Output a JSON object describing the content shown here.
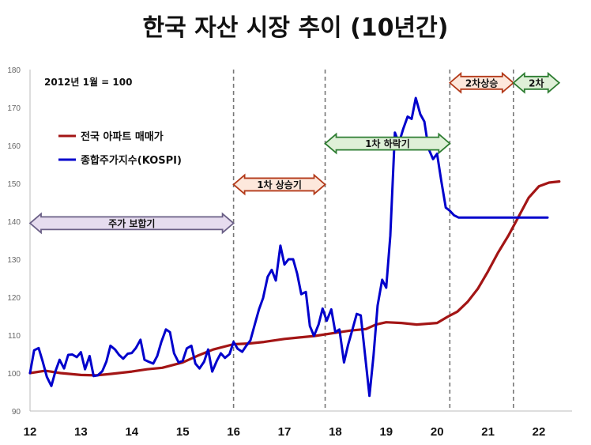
{
  "chart_data": {
    "type": "line",
    "title": "한국 자산 시장 추이 (10년간)",
    "base_note": "2012년 1월 = 100",
    "ylim": [
      90,
      180
    ],
    "yticks": [
      90,
      100,
      110,
      120,
      130,
      140,
      150,
      160,
      170,
      180
    ],
    "xlim": [
      12,
      22.45
    ],
    "xticks": [
      12,
      13,
      14,
      15,
      16,
      17,
      18,
      19,
      20,
      21,
      22
    ],
    "xtick_labels": [
      "12",
      "13",
      "14",
      "15",
      "16",
      "17",
      "18",
      "19",
      "20",
      "21",
      "22"
    ],
    "grid": false,
    "legend_position": "upper-left",
    "series": [
      {
        "name": "전국 아파트 매매가",
        "color": "#a31515",
        "x": [
          12.0,
          12.3,
          12.6,
          13.0,
          13.3,
          13.6,
          14.0,
          14.3,
          14.6,
          15.0,
          15.3,
          15.6,
          16.0,
          16.3,
          16.6,
          17.0,
          17.3,
          17.6,
          18.0,
          18.3,
          18.6,
          18.8,
          19.0,
          19.3,
          19.6,
          20.0,
          20.2,
          20.4,
          20.6,
          20.8,
          21.0,
          21.2,
          21.4,
          21.6,
          21.8,
          22.0,
          22.2,
          22.4
        ],
        "y": [
          100,
          100.6,
          100,
          99.5,
          99.4,
          99.8,
          100.4,
          101,
          101.4,
          102.8,
          104.6,
          106.2,
          107.6,
          107.8,
          108.2,
          109,
          109.4,
          109.8,
          110.6,
          111.2,
          111.6,
          112.8,
          113.4,
          113.2,
          112.8,
          113.2,
          114.8,
          116.2,
          118.8,
          122.2,
          126.8,
          131.8,
          136.2,
          141.2,
          146.2,
          149.2,
          150.2,
          150.5
        ]
      },
      {
        "name": "종합주가지수(KOSPI)",
        "color": "#0000cc",
        "x": [
          12.0,
          12.08,
          12.17,
          12.25,
          12.33,
          12.42,
          12.5,
          12.58,
          12.67,
          12.75,
          12.83,
          12.92,
          13.0,
          13.08,
          13.17,
          13.25,
          13.33,
          13.42,
          13.5,
          13.58,
          13.67,
          13.75,
          13.83,
          13.92,
          14.0,
          14.08,
          14.17,
          14.25,
          14.33,
          14.42,
          14.5,
          14.58,
          14.67,
          14.75,
          14.83,
          14.92,
          15.0,
          15.08,
          15.17,
          15.25,
          15.33,
          15.42,
          15.5,
          15.58,
          15.67,
          15.75,
          15.83,
          15.92,
          16.0,
          16.08,
          16.17,
          16.25,
          16.33,
          16.42,
          16.5,
          16.58,
          16.67,
          16.75,
          16.83,
          16.92,
          17.0,
          17.08,
          17.17,
          17.25,
          17.33,
          17.42,
          17.5,
          17.58,
          17.67,
          17.75,
          17.83,
          17.92,
          18.0,
          18.08,
          18.17,
          18.25,
          18.33,
          18.42,
          18.5,
          18.58,
          18.67,
          18.75,
          18.83,
          18.92,
          19.0,
          19.08,
          19.17,
          19.25,
          19.33,
          19.42,
          19.5,
          19.58,
          19.67,
          19.75,
          19.83,
          19.92,
          20.0,
          20.08,
          20.17,
          20.25,
          20.33,
          20.42,
          20.5,
          20.58,
          20.67,
          20.75,
          20.83,
          20.92,
          21.0,
          21.08,
          21.17,
          21.25,
          21.33,
          21.42,
          21.5,
          21.58,
          21.67,
          21.75,
          21.83,
          21.92,
          22.0,
          22.08,
          22.17
        ],
        "y": [
          100,
          106,
          106.6,
          103,
          99,
          96.6,
          100.5,
          103.5,
          101.2,
          104.8,
          104.9,
          104.2,
          105.5,
          101,
          104.5,
          99.2,
          99.4,
          100.5,
          103,
          107.2,
          106.2,
          104.8,
          103.8,
          105.1,
          105.3,
          106.6,
          108.8,
          103.5,
          103,
          102.5,
          104.5,
          108.2,
          111.5,
          110.8,
          105.2,
          102.8,
          103.2,
          106.5,
          107.2,
          102.5,
          101.2,
          103,
          106.2,
          100.4,
          103.2,
          105.2,
          104,
          105,
          108.2,
          106.4,
          105.6,
          107.2,
          108.6,
          113,
          116.8,
          119.8,
          125.4,
          127.2,
          124.4,
          133.6,
          128.6,
          130,
          130,
          126.2,
          120.8,
          121.4,
          112.4,
          109.8,
          112.8,
          117,
          113.8,
          116.8,
          110.8,
          111.5,
          102.8,
          107.4,
          111.2,
          115.6,
          115.2,
          105.2,
          94,
          104.5,
          117.8,
          124.6,
          122.5,
          136.2,
          163.4,
          160.6,
          164.2,
          167.6,
          167,
          172.5,
          168.2,
          166.3,
          159.2,
          156.4,
          157.8,
          150.8,
          143.6,
          142.8,
          141.6,
          141,
          141,
          141,
          141,
          141,
          141,
          141,
          141,
          141,
          141,
          141,
          141,
          141,
          141,
          141,
          141,
          141,
          141,
          141,
          141,
          141,
          141
        ]
      }
    ],
    "phase_lines_x": [
      16.0,
      17.8,
      20.25,
      21.5
    ],
    "phases": [
      {
        "label": "주가 보합기",
        "x0": 12.0,
        "x1": 16.0,
        "y": 139.5,
        "fill": "#e6dcef",
        "stroke": "#6a5f86"
      },
      {
        "label": "1차 상승기",
        "x0": 16.0,
        "x1": 17.8,
        "y": 149.7,
        "fill": "#fde8dc",
        "stroke": "#b33a1a"
      },
      {
        "label": "1차 하락기",
        "x0": 17.8,
        "x1": 20.25,
        "y": 160.5,
        "fill": "#dff0d8",
        "stroke": "#2e7d32"
      },
      {
        "label": "2차상승",
        "x0": 20.25,
        "x1": 21.5,
        "y": 176.5,
        "fill": "#fde8dc",
        "stroke": "#b33a1a"
      },
      {
        "label": "2차",
        "x0": 21.5,
        "x1": 22.4,
        "y": 176.5,
        "fill": "#dff0d8",
        "stroke": "#2e7d32"
      }
    ]
  }
}
